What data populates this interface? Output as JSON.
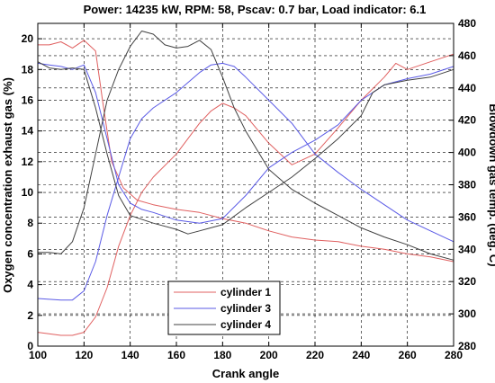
{
  "chart_data": {
    "type": "line",
    "title": "Power: 14235 kW, RPM: 58, Pscav: 0.7 bar, Load indicator: 6.1",
    "xlabel": "Crank angle",
    "ylabel_left": "Oxygen concentration exhaust gas (%)",
    "ylabel_right": "Blowdown gas temp. (deg. C)",
    "xlim": [
      100,
      280
    ],
    "ylim_left": [
      0,
      21
    ],
    "ylim_right": [
      280,
      480
    ],
    "grid": true,
    "legend_position": "lower-center",
    "x_ticks": [
      100,
      120,
      140,
      160,
      180,
      200,
      220,
      240,
      260,
      280
    ],
    "y_left_ticks": [
      0,
      2,
      4,
      6,
      8,
      10,
      12,
      14,
      16,
      18,
      20
    ],
    "y_right_ticks": [
      280,
      300,
      320,
      340,
      360,
      380,
      400,
      420,
      440,
      460,
      480
    ],
    "series": [
      {
        "name": "cylinder 1",
        "color": "#e06060",
        "axis": "left",
        "points": [
          [
            100,
            19.6
          ],
          [
            105,
            19.6
          ],
          [
            110,
            19.8
          ],
          [
            115,
            19.4
          ],
          [
            120,
            19.9
          ],
          [
            125,
            19.2
          ],
          [
            128,
            16
          ],
          [
            132,
            12
          ],
          [
            137,
            10.3
          ],
          [
            143,
            9.5
          ],
          [
            150,
            9.2
          ],
          [
            160,
            8.9
          ],
          [
            170,
            8.7
          ],
          [
            175,
            8.5
          ],
          [
            180,
            8.3
          ],
          [
            190,
            8.0
          ],
          [
            200,
            7.5
          ],
          [
            210,
            7.1
          ],
          [
            220,
            6.9
          ],
          [
            230,
            6.8
          ],
          [
            240,
            6.5
          ],
          [
            250,
            6.3
          ],
          [
            260,
            6.0
          ],
          [
            270,
            5.8
          ],
          [
            280,
            5.5
          ]
        ]
      },
      {
        "name": "cylinder 1",
        "color": "#e06060",
        "axis": "left",
        "points": [
          [
            100,
            0.9
          ],
          [
            110,
            0.7
          ],
          [
            115,
            0.7
          ],
          [
            120,
            0.9
          ],
          [
            125,
            1.9
          ],
          [
            130,
            3.8
          ],
          [
            135,
            6.5
          ],
          [
            140,
            8.5
          ],
          [
            145,
            10.0
          ],
          [
            150,
            11.0
          ],
          [
            160,
            12.5
          ],
          [
            170,
            14.5
          ],
          [
            175,
            15.3
          ],
          [
            180,
            15.8
          ],
          [
            185,
            15.5
          ],
          [
            190,
            15.0
          ],
          [
            200,
            13.2
          ],
          [
            210,
            11.8
          ],
          [
            220,
            12.5
          ],
          [
            230,
            14.2
          ],
          [
            240,
            16.0
          ],
          [
            250,
            17.5
          ],
          [
            255,
            18.4
          ],
          [
            260,
            18.0
          ],
          [
            270,
            18.5
          ],
          [
            280,
            19.0
          ]
        ]
      },
      {
        "name": "cylinder 3",
        "color": "#5a5ae6",
        "axis": "left",
        "points": [
          [
            100,
            18.4
          ],
          [
            105,
            18.3
          ],
          [
            110,
            18.2
          ],
          [
            115,
            18.0
          ],
          [
            120,
            18.3
          ],
          [
            125,
            16.5
          ],
          [
            130,
            13.5
          ],
          [
            135,
            10.5
          ],
          [
            140,
            9.3
          ],
          [
            145,
            8.9
          ],
          [
            150,
            8.7
          ],
          [
            160,
            8.2
          ],
          [
            170,
            8.0
          ],
          [
            180,
            8.3
          ],
          [
            190,
            9.8
          ],
          [
            200,
            11.6
          ],
          [
            210,
            12.6
          ],
          [
            220,
            13.4
          ],
          [
            230,
            14.4
          ],
          [
            240,
            16.0
          ],
          [
            250,
            17.0
          ],
          [
            260,
            17.4
          ],
          [
            270,
            17.7
          ],
          [
            280,
            18.2
          ]
        ]
      },
      {
        "name": "cylinder 3",
        "color": "#5a5ae6",
        "axis": "left",
        "points": [
          [
            100,
            3.1
          ],
          [
            110,
            3.0
          ],
          [
            115,
            3.0
          ],
          [
            120,
            3.6
          ],
          [
            125,
            5.5
          ],
          [
            130,
            8.5
          ],
          [
            135,
            11.0
          ],
          [
            140,
            13.5
          ],
          [
            145,
            14.8
          ],
          [
            150,
            15.5
          ],
          [
            160,
            16.5
          ],
          [
            170,
            17.8
          ],
          [
            175,
            18.3
          ],
          [
            180,
            18.4
          ],
          [
            185,
            18.2
          ],
          [
            190,
            17.5
          ],
          [
            200,
            16.0
          ],
          [
            210,
            14.5
          ],
          [
            220,
            12.5
          ],
          [
            230,
            11.3
          ],
          [
            240,
            10.2
          ],
          [
            250,
            9.2
          ],
          [
            260,
            8.2
          ],
          [
            270,
            7.5
          ],
          [
            280,
            6.8
          ]
        ]
      },
      {
        "name": "cylinder 4",
        "color": "#404040",
        "axis": "left",
        "points": [
          [
            100,
            18.5
          ],
          [
            105,
            18.1
          ],
          [
            110,
            18.0
          ],
          [
            115,
            18.1
          ],
          [
            120,
            18.0
          ],
          [
            125,
            15.5
          ],
          [
            130,
            12.5
          ],
          [
            135,
            9.8
          ],
          [
            140,
            8.5
          ],
          [
            150,
            8.0
          ],
          [
            160,
            7.6
          ],
          [
            165,
            7.3
          ],
          [
            170,
            7.5
          ],
          [
            180,
            7.9
          ],
          [
            190,
            9.0
          ],
          [
            200,
            10.0
          ],
          [
            210,
            11.0
          ],
          [
            220,
            12.2
          ],
          [
            230,
            13.5
          ],
          [
            240,
            15.0
          ],
          [
            245,
            16.5
          ],
          [
            250,
            17.0
          ],
          [
            260,
            17.3
          ],
          [
            270,
            17.5
          ],
          [
            280,
            18.0
          ]
        ]
      },
      {
        "name": "cylinder 4",
        "color": "#404040",
        "axis": "left",
        "points": [
          [
            100,
            6.1
          ],
          [
            105,
            6.1
          ],
          [
            110,
            6.0
          ],
          [
            115,
            6.8
          ],
          [
            120,
            9.0
          ],
          [
            125,
            12.5
          ],
          [
            130,
            16.0
          ],
          [
            135,
            18.0
          ],
          [
            140,
            19.5
          ],
          [
            145,
            20.5
          ],
          [
            150,
            20.3
          ],
          [
            155,
            19.6
          ],
          [
            160,
            19.4
          ],
          [
            165,
            19.5
          ],
          [
            170,
            19.9
          ],
          [
            175,
            19.3
          ],
          [
            180,
            17.5
          ],
          [
            185,
            15.5
          ],
          [
            190,
            14.0
          ],
          [
            200,
            11.5
          ],
          [
            210,
            10.2
          ],
          [
            220,
            9.3
          ],
          [
            230,
            8.5
          ],
          [
            240,
            7.7
          ],
          [
            250,
            7.1
          ],
          [
            260,
            6.6
          ],
          [
            270,
            6.0
          ],
          [
            280,
            5.6
          ]
        ]
      }
    ],
    "legend": [
      {
        "label": "cylinder 1",
        "color": "#e06060"
      },
      {
        "label": "cylinder 3",
        "color": "#5a5ae6"
      },
      {
        "label": "cylinder 4",
        "color": "#404040"
      }
    ]
  }
}
